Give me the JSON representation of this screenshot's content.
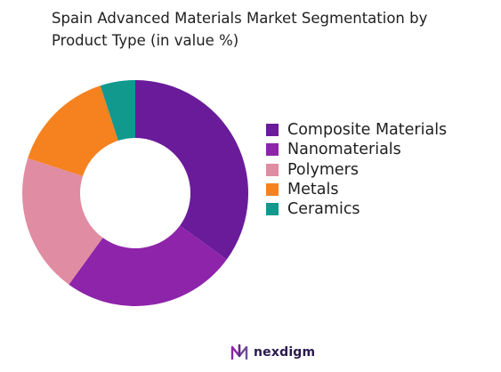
{
  "chart_data": {
    "type": "pie",
    "variant": "donut",
    "title": "Spain Advanced Materials Market Segmentation by Product Type (in value %)",
    "categories": [
      "Composite Materials",
      "Nanomaterials",
      "Polymers",
      "Metals",
      "Ceramics"
    ],
    "values": [
      35,
      25,
      20,
      15,
      5
    ],
    "colors": [
      "#6a1b9a",
      "#8e24aa",
      "#e08ca3",
      "#f5821f",
      "#11998e"
    ],
    "legend_position": "right"
  },
  "brand": {
    "name": "nexdigm",
    "logo": "nexdigm-logo"
  }
}
